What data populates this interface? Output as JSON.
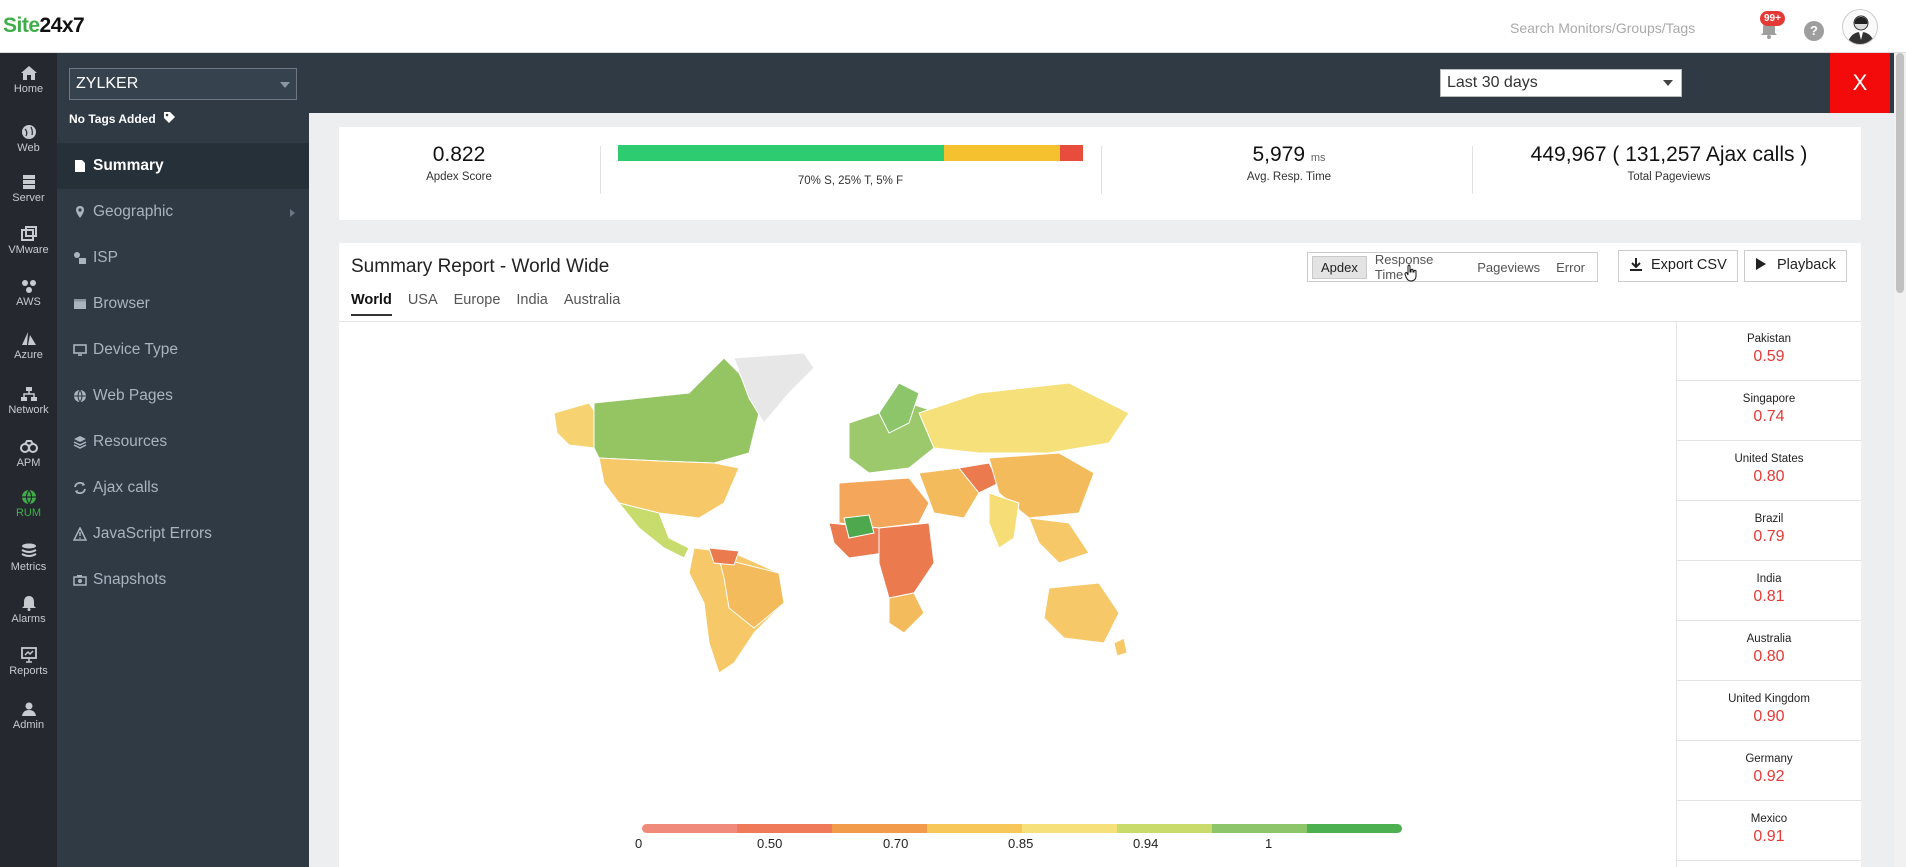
{
  "app": {
    "logo_part1": "Site",
    "logo_part2": "24x7",
    "search_placeholder": "Search Monitors/Groups/Tags",
    "notification_badge": "99+",
    "help_label": "?"
  },
  "rail": [
    {
      "label": "Home",
      "icon": "home-icon"
    },
    {
      "label": "Web",
      "icon": "globe-icon"
    },
    {
      "label": "Server",
      "icon": "server-icon"
    },
    {
      "label": "VMware",
      "icon": "vmware-icon"
    },
    {
      "label": "AWS",
      "icon": "aws-icon"
    },
    {
      "label": "Azure",
      "icon": "azure-icon"
    },
    {
      "label": "Network",
      "icon": "network-icon"
    },
    {
      "label": "APM",
      "icon": "apm-icon"
    },
    {
      "label": "RUM",
      "icon": "rum-icon",
      "active": true
    },
    {
      "label": "Metrics",
      "icon": "metrics-icon"
    },
    {
      "label": "Alarms",
      "icon": "bell-icon"
    },
    {
      "label": "Reports",
      "icon": "reports-icon"
    },
    {
      "label": "Admin",
      "icon": "admin-icon"
    }
  ],
  "side": {
    "monitor_select": "ZYLKER",
    "no_tags": "No Tags Added",
    "nav": [
      {
        "label": "Summary",
        "active": true
      },
      {
        "label": "Geographic",
        "has_submenu": true
      },
      {
        "label": "ISP"
      },
      {
        "label": "Browser"
      },
      {
        "label": "Device Type"
      },
      {
        "label": "Web Pages"
      },
      {
        "label": "Resources"
      },
      {
        "label": "Ajax calls"
      },
      {
        "label": "JavaScript Errors"
      },
      {
        "label": "Snapshots"
      }
    ]
  },
  "header": {
    "time_range": "Last 30 days",
    "close_label": "X"
  },
  "summary": {
    "apdex_value": "0.822",
    "apdex_label": "Apdex Score",
    "apdex_breakdown": "70% S, 25% T, 5% F",
    "apdex_split": {
      "satisfied": 70,
      "tolerating": 25,
      "frustrated": 5
    },
    "resp_value": "5,979",
    "resp_unit": "ms",
    "resp_label": "Avg. Resp. Time",
    "pageviews_value": "449,967 ( 131,257 Ajax calls )",
    "pageviews_label": "Total Pageviews"
  },
  "report": {
    "title": "Summary Report - World Wide",
    "metric_tabs": [
      "Apdex",
      "Response Time",
      "Pageviews",
      "Error"
    ],
    "active_metric": "Apdex",
    "export_label": "Export CSV",
    "playback_label": "Playback",
    "region_tabs": [
      "World",
      "USA",
      "Europe",
      "India",
      "Australia"
    ],
    "active_region": "World",
    "legend_labels": [
      "0",
      "0.50",
      "0.70",
      "0.85",
      "0.94",
      "1"
    ],
    "legend_colors": [
      "#f08a7a",
      "#ee7a5a",
      "#f29b4b",
      "#f8c75a",
      "#f6e07a",
      "#c9db6a",
      "#8cc56a",
      "#4caf50"
    ],
    "countries": [
      {
        "name": "Pakistan",
        "score": "0.59"
      },
      {
        "name": "Singapore",
        "score": "0.74"
      },
      {
        "name": "United States",
        "score": "0.80"
      },
      {
        "name": "Brazil",
        "score": "0.79"
      },
      {
        "name": "India",
        "score": "0.81"
      },
      {
        "name": "Australia",
        "score": "0.80"
      },
      {
        "name": "United Kingdom",
        "score": "0.90"
      },
      {
        "name": "Germany",
        "score": "0.92"
      },
      {
        "name": "Mexico",
        "score": "0.91"
      }
    ]
  }
}
